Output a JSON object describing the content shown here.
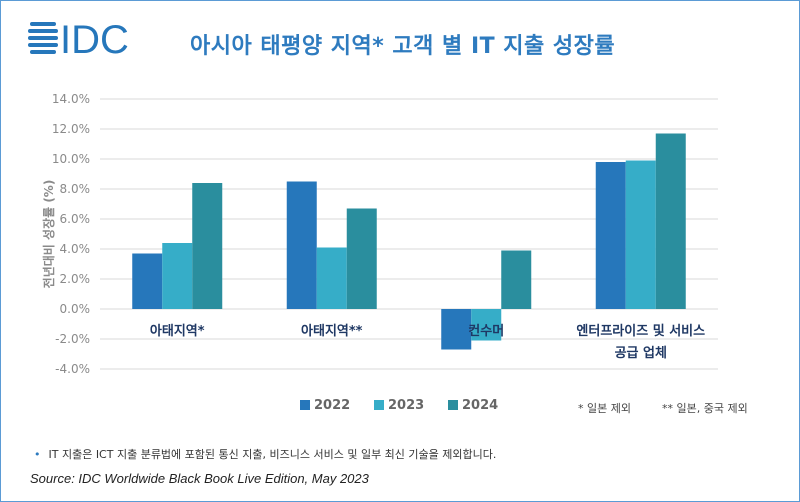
{
  "logo_text": "IDC",
  "title": "아시아 태평양 지역* 고객 별 IT 지출 성장률",
  "colors": {
    "2022": "#2677bb",
    "2023": "#36adc8",
    "2024": "#2a8e9e",
    "title": "#2e7bbf",
    "label": "#1f3864"
  },
  "chart_data": {
    "type": "bar",
    "title": "아시아 태평양 지역* 고객 별 IT 지출 성장률",
    "xlabel": "",
    "ylabel": "전년대비 성장률 (%)",
    "ylim": [
      -4,
      14
    ],
    "yticks": [
      "14.0%",
      "12.0%",
      "10.0%",
      "8.0%",
      "6.0%",
      "4.0%",
      "2.0%",
      "0.0%",
      "-2.0%",
      "-4.0%"
    ],
    "ytick_values": [
      14,
      12,
      10,
      8,
      6,
      4,
      2,
      0,
      -2,
      -4
    ],
    "grid": true,
    "legend": "bottom",
    "categories": [
      "아태지역*",
      "아태지역**",
      "컨수머",
      "엔터프라이즈 및 서비스 공급 업체"
    ],
    "category_lines": [
      [
        "아태지역*"
      ],
      [
        "아태지역**"
      ],
      [
        "컨수머"
      ],
      [
        "엔터프라이즈 및 서비스",
        "공급 업체"
      ]
    ],
    "series": [
      {
        "name": "2022",
        "values": [
          3.7,
          8.5,
          -2.7,
          9.8
        ]
      },
      {
        "name": "2023",
        "values": [
          4.4,
          4.1,
          -2.1,
          9.9
        ]
      },
      {
        "name": "2024",
        "values": [
          8.4,
          6.7,
          3.9,
          11.7
        ]
      }
    ]
  },
  "notes": [
    "* 일본 제외",
    "** 일본, 중국 제외"
  ],
  "footnote": "IT 지출은 ICT 지출 분류법에 포함된 통신 지출, 비즈니스 서비스 및 일부 최신 기술을 제외합니다.",
  "footnote_bullet": "•",
  "source": "Source: IDC Worldwide Black Book Live Edition, May 2023"
}
